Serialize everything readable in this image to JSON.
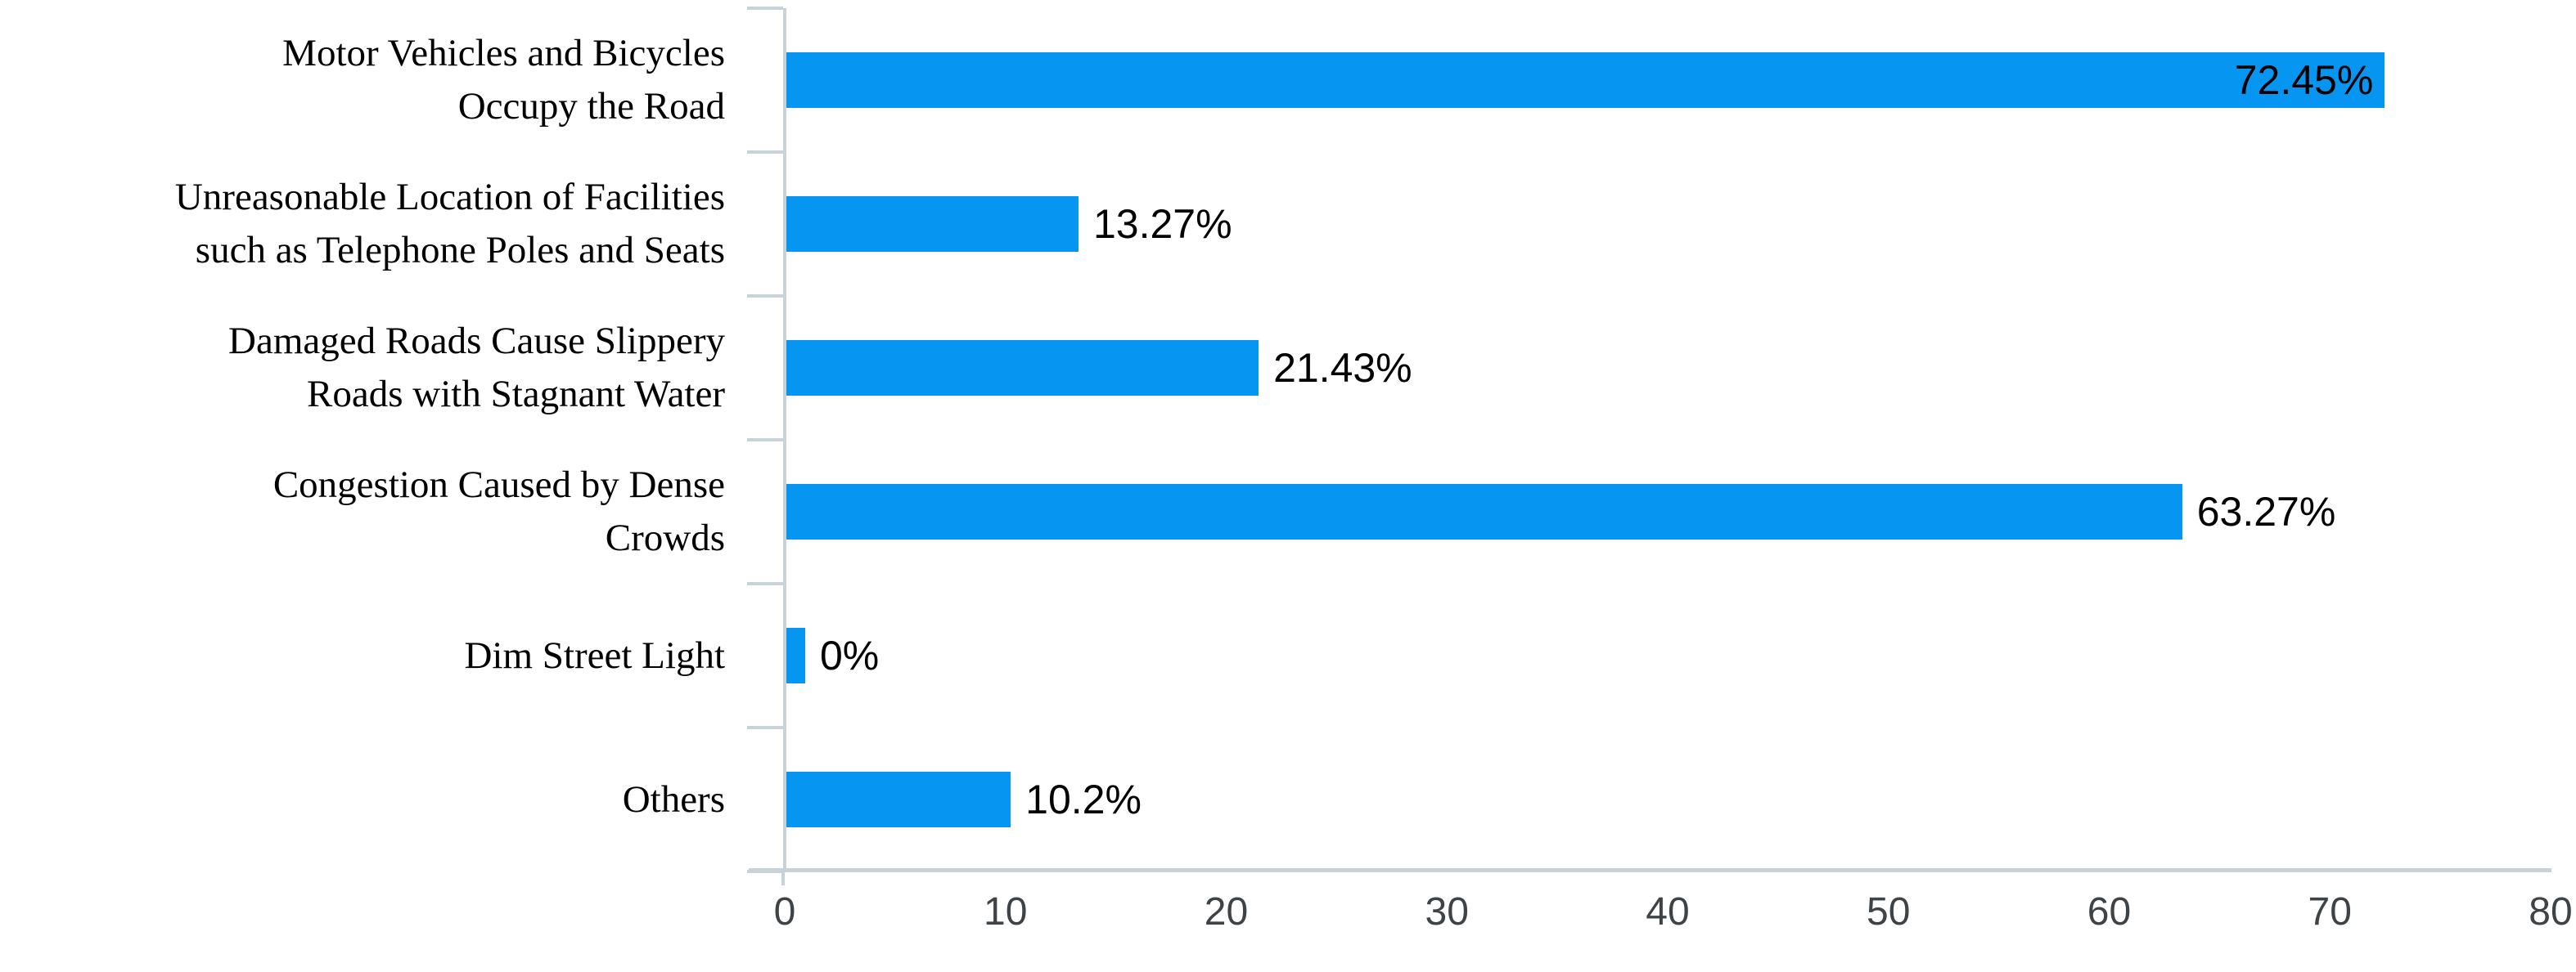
{
  "chart_data": {
    "type": "bar",
    "orientation": "horizontal",
    "title": "",
    "xlabel": "",
    "ylabel": "",
    "categories": [
      "Motor Vehicles and Bicycles Occupy the Road",
      "Unreasonable Location of Facilities such as Telephone Poles and Seats",
      "Damaged Roads Cause Slippery Roads with Stagnant Water",
      "Congestion Caused by Dense Crowds",
      "Dim Street Light",
      "Others"
    ],
    "category_lines": [
      [
        "Motor Vehicles and Bicycles",
        "Occupy the Road"
      ],
      [
        "Unreasonable Location of Facilities",
        "such as Telephone Poles and Seats"
      ],
      [
        "Damaged Roads Cause Slippery",
        "Roads with Stagnant Water"
      ],
      [
        "Congestion Caused by Dense",
        "Crowds"
      ],
      [
        "Dim Street Light"
      ],
      [
        "Others"
      ]
    ],
    "values": [
      72.45,
      13.27,
      21.43,
      63.27,
      0,
      10.2
    ],
    "value_labels": [
      "72.45%",
      "13.27%",
      "21.43%",
      "63.27%",
      "0%",
      "10.2%"
    ],
    "value_label_placement": [
      "inside",
      "outside",
      "outside",
      "outside",
      "outside",
      "outside"
    ],
    "xlim": [
      0,
      80
    ],
    "x_ticks": [
      0,
      10,
      20,
      30,
      40,
      50,
      60,
      70,
      80
    ],
    "grid": false,
    "legend": "none",
    "colors": {
      "bar_fill": "#0795F2",
      "axis_line": "#C7D2D9",
      "value_label_text": "#000000",
      "category_label_text": "#000000",
      "tick_label_text": "#3E4347"
    }
  }
}
